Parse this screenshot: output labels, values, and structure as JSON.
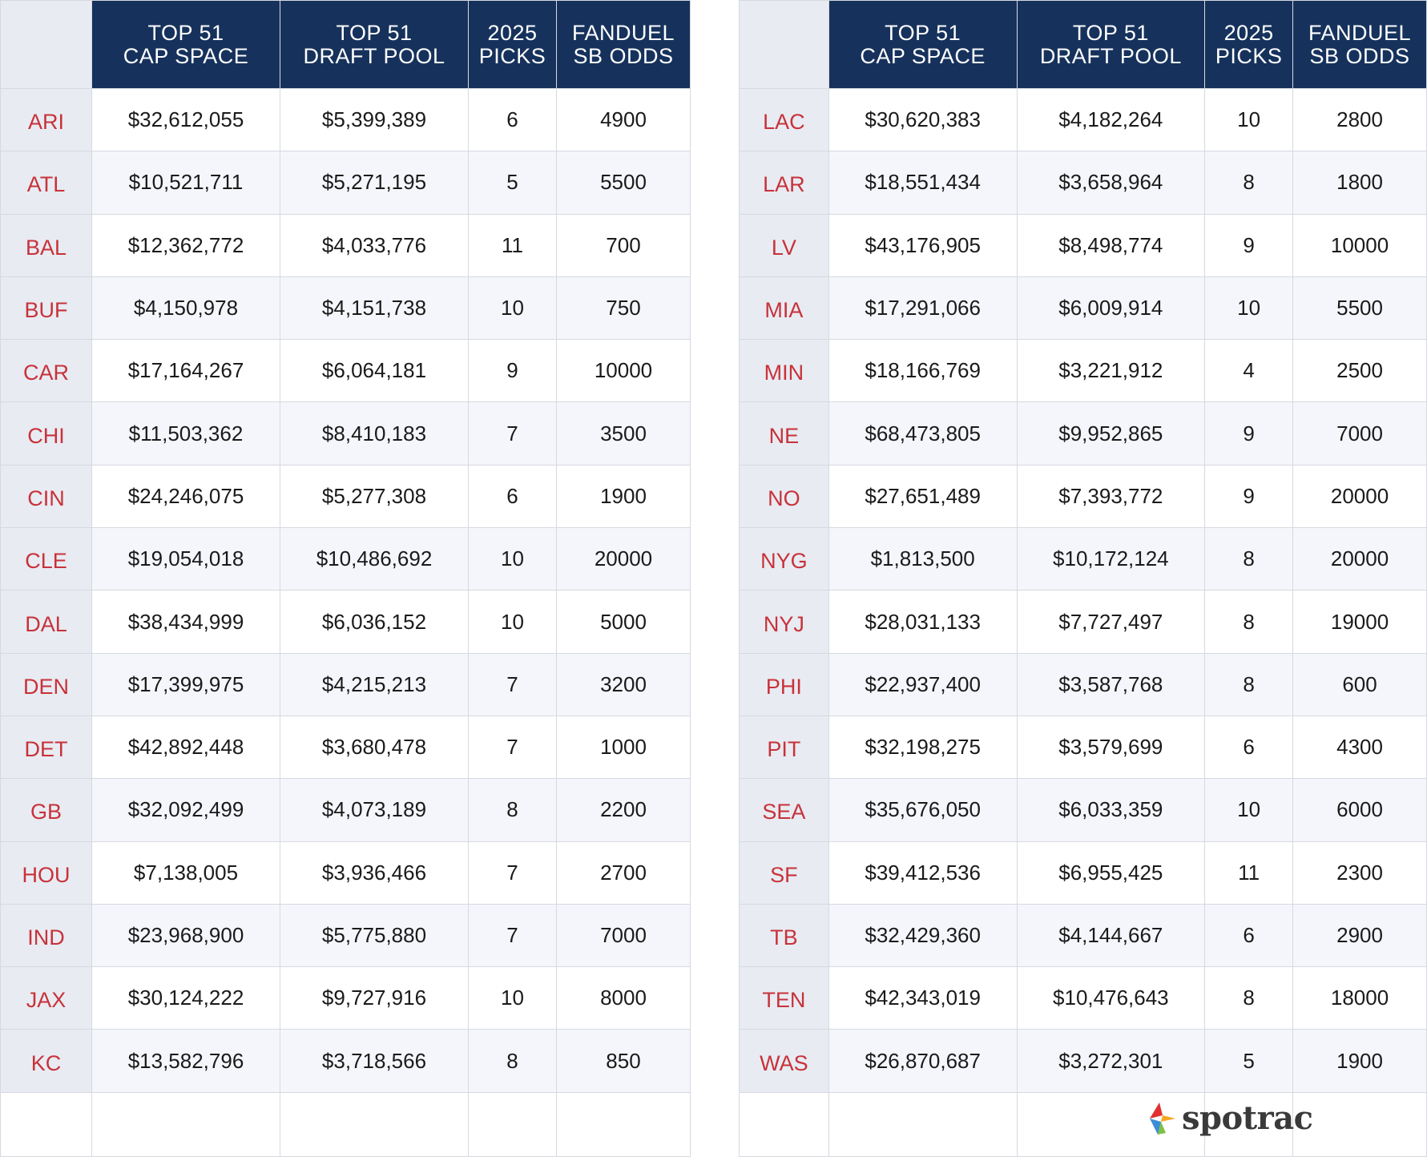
{
  "headers": [
    [
      "TOP 51",
      "CAP SPACE"
    ],
    [
      "TOP 51",
      "DRAFT POOL"
    ],
    [
      "2025",
      "PICKS"
    ],
    [
      "FANDUEL",
      "SB ODDS"
    ]
  ],
  "left_rows": [
    [
      "ARI",
      "$32,612,055",
      "$5,399,389",
      "6",
      "4900"
    ],
    [
      "ATL",
      "$10,521,711",
      "$5,271,195",
      "5",
      "5500"
    ],
    [
      "BAL",
      "$12,362,772",
      "$4,033,776",
      "11",
      "700"
    ],
    [
      "BUF",
      "$4,150,978",
      "$4,151,738",
      "10",
      "750"
    ],
    [
      "CAR",
      "$17,164,267",
      "$6,064,181",
      "9",
      "10000"
    ],
    [
      "CHI",
      "$11,503,362",
      "$8,410,183",
      "7",
      "3500"
    ],
    [
      "CIN",
      "$24,246,075",
      "$5,277,308",
      "6",
      "1900"
    ],
    [
      "CLE",
      "$19,054,018",
      "$10,486,692",
      "10",
      "20000"
    ],
    [
      "DAL",
      "$38,434,999",
      "$6,036,152",
      "10",
      "5000"
    ],
    [
      "DEN",
      "$17,399,975",
      "$4,215,213",
      "7",
      "3200"
    ],
    [
      "DET",
      "$42,892,448",
      "$3,680,478",
      "7",
      "1000"
    ],
    [
      "GB",
      "$32,092,499",
      "$4,073,189",
      "8",
      "2200"
    ],
    [
      "HOU",
      "$7,138,005",
      "$3,936,466",
      "7",
      "2700"
    ],
    [
      "IND",
      "$23,968,900",
      "$5,775,880",
      "7",
      "7000"
    ],
    [
      "JAX",
      "$30,124,222",
      "$9,727,916",
      "10",
      "8000"
    ],
    [
      "KC",
      "$13,582,796",
      "$3,718,566",
      "8",
      "850"
    ]
  ],
  "right_rows": [
    [
      "LAC",
      "$30,620,383",
      "$4,182,264",
      "10",
      "2800"
    ],
    [
      "LAR",
      "$18,551,434",
      "$3,658,964",
      "8",
      "1800"
    ],
    [
      "LV",
      "$43,176,905",
      "$8,498,774",
      "9",
      "10000"
    ],
    [
      "MIA",
      "$17,291,066",
      "$6,009,914",
      "10",
      "5500"
    ],
    [
      "MIN",
      "$18,166,769",
      "$3,221,912",
      "4",
      "2500"
    ],
    [
      "NE",
      "$68,473,805",
      "$9,952,865",
      "9",
      "7000"
    ],
    [
      "NO",
      "$27,651,489",
      "$7,393,772",
      "9",
      "20000"
    ],
    [
      "NYG",
      "$1,813,500",
      "$10,172,124",
      "8",
      "20000"
    ],
    [
      "NYJ",
      "$28,031,133",
      "$7,727,497",
      "8",
      "19000"
    ],
    [
      "PHI",
      "$22,937,400",
      "$3,587,768",
      "8",
      "600"
    ],
    [
      "PIT",
      "$32,198,275",
      "$3,579,699",
      "6",
      "4300"
    ],
    [
      "SEA",
      "$35,676,050",
      "$6,033,359",
      "10",
      "6000"
    ],
    [
      "SF",
      "$39,412,536",
      "$6,955,425",
      "11",
      "2300"
    ],
    [
      "TB",
      "$32,429,360",
      "$4,144,667",
      "6",
      "2900"
    ],
    [
      "TEN",
      "$42,343,019",
      "$10,476,643",
      "8",
      "18000"
    ],
    [
      "WAS",
      "$26,870,687",
      "$3,272,301",
      "5",
      "1900"
    ]
  ],
  "logo": {
    "text": "spotrac",
    "colors": [
      "#e0312f",
      "#f5a623",
      "#3c8dd6",
      "#7cc243"
    ]
  },
  "colors": {
    "header_bg": "#16325c",
    "team_text": "#c8323a",
    "team_bg": "#e8ebf2"
  }
}
